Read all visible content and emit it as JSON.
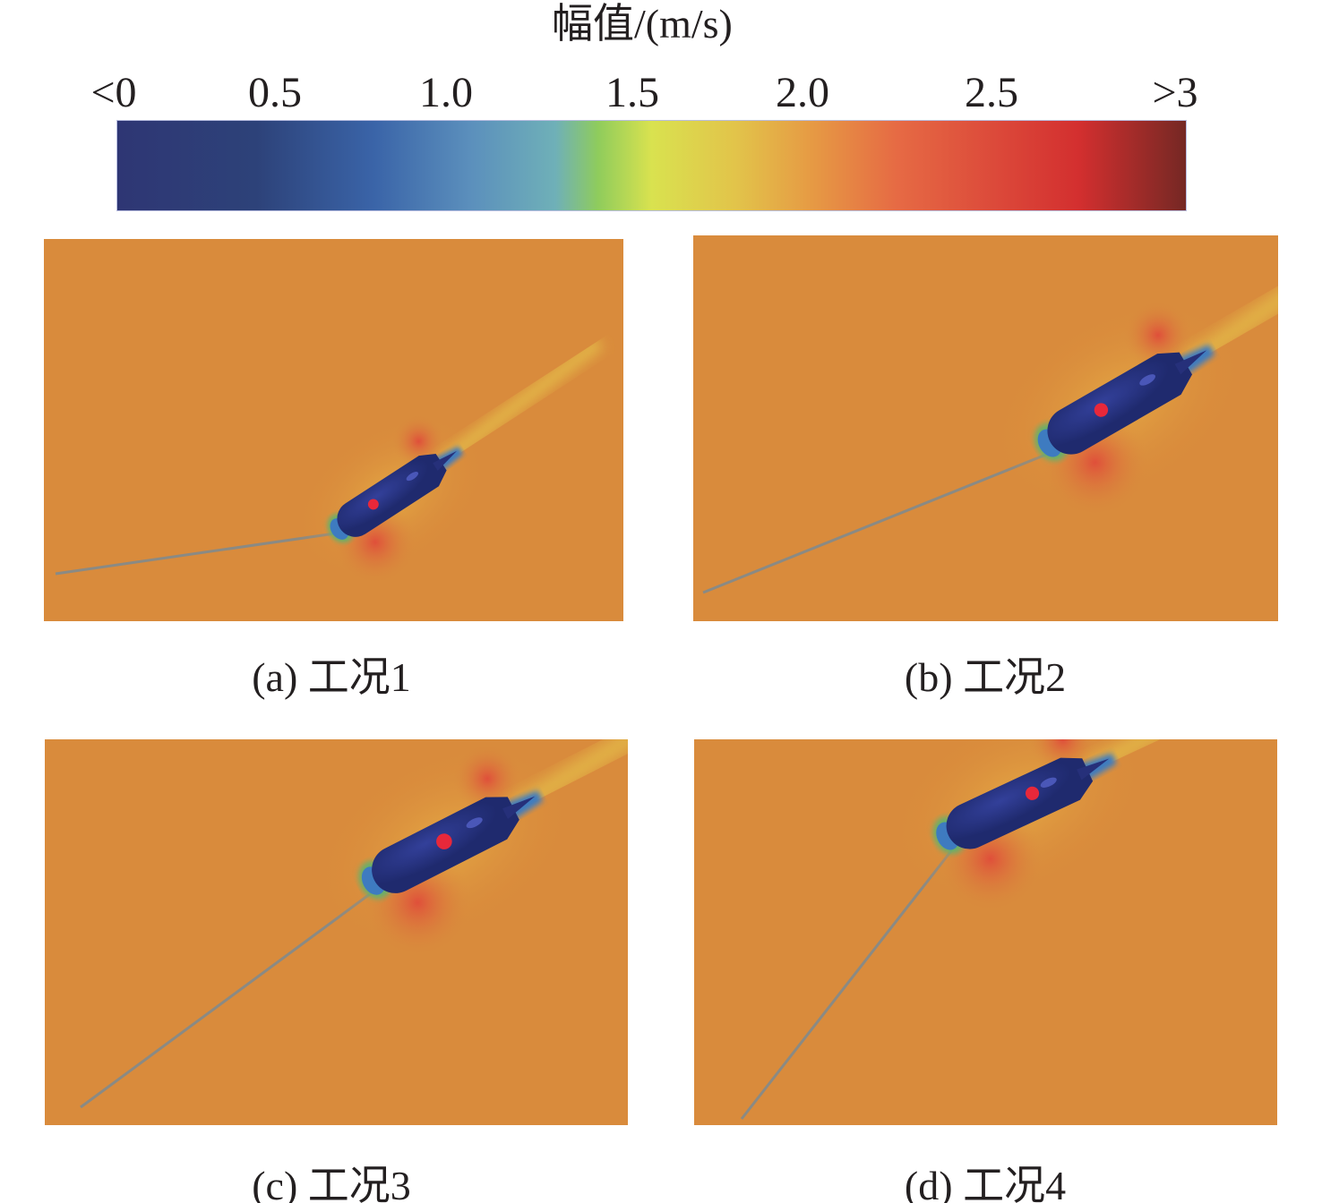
{
  "colorbar": {
    "title": "幅值/(m/s)",
    "ticks": [
      "<0",
      "0.5",
      "1.0",
      "1.5",
      "2.0",
      "2.5",
      ">3"
    ],
    "colors": [
      "#2e3674",
      "#3a64a8",
      "#6fb0b8",
      "#d9e24f",
      "#e69a44",
      "#d32f2f",
      "#752824"
    ]
  },
  "background_color": "#d98b3c",
  "panels": [
    {
      "caption": "(a) 工况1"
    },
    {
      "caption": "(b) 工况2"
    },
    {
      "caption": "(c) 工况3"
    },
    {
      "caption": "(d) 工况4"
    }
  ]
}
